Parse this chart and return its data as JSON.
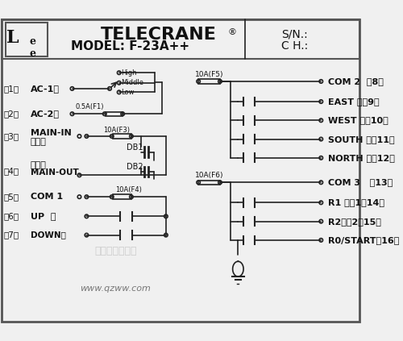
{
  "title_brand": "TELECRANE",
  "title_reg": "®",
  "title_model": "MODEL: F-23A++",
  "sn_label": "S/N.:",
  "ch_label": "C H.:",
  "bg_color": "#f0f0f0",
  "border_color": "#333333",
  "line_color": "#222222",
  "text_color": "#111111",
  "website": "www.qzww.com",
  "watermark": "输配电工图资城",
  "left_labels": [
    {
      "num": "1",
      "text": "AC-1电"
    },
    {
      "num": "2",
      "text": "AC-2源"
    },
    {
      "num": "3",
      "text": "MAIN-IN\n总停入"
    },
    {
      "num": "4",
      "text": "MAIN-OUT"
    },
    {
      "num": "5",
      "text": "COM 1"
    },
    {
      "num": "6",
      "text": "UP 上"
    },
    {
      "num": "7",
      "text": "DOWN下"
    }
  ],
  "right_labels_top": [
    {
      "num": "8",
      "text": "COM 2  （8）"
    },
    {
      "num": "9",
      "text": "EAST 东（9）"
    },
    {
      "num": "10",
      "text": "WEST 西（10）"
    },
    {
      "num": "11",
      "text": "SOUTH 南（11）"
    },
    {
      "num": "12",
      "text": "NORTH 北（12）"
    }
  ],
  "right_labels_bot": [
    {
      "num": "13",
      "text": "COM 3   （13）"
    },
    {
      "num": "14",
      "text": "R1 备用1（14）"
    },
    {
      "num": "15",
      "text": "R2备用2（15）"
    },
    {
      "num": "16",
      "text": "R0/START（16）"
    }
  ],
  "fuse_labels": {
    "f1": "0.5A(F1)",
    "f3": "10A(F3)",
    "f4": "10A(F4)",
    "f5": "10A(F5)",
    "f6": "10A(F6)"
  },
  "db_labels": {
    "db1": "DB1",
    "db2": "DB2",
    "stop_out": "总停出"
  }
}
